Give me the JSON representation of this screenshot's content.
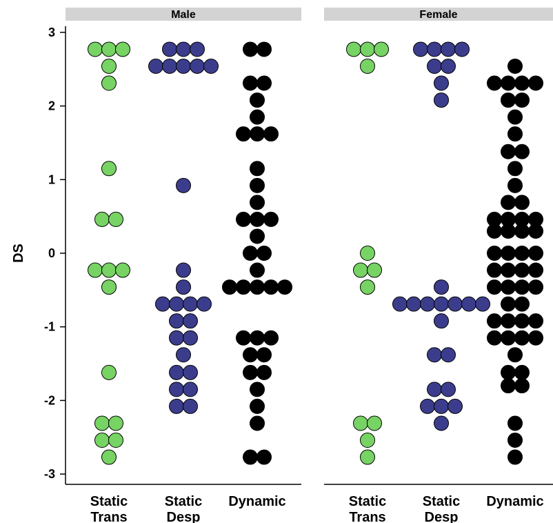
{
  "chart_data": {
    "type": "scatter",
    "subtype": "dot-strip",
    "ylabel": "DS",
    "ylim": [
      -3.2,
      3.2
    ],
    "yticks": [
      "3",
      "2",
      "1",
      "0",
      "-1",
      "-2",
      "-3"
    ],
    "ytick_values": [
      3,
      2,
      1,
      0,
      -1,
      -2,
      -3
    ],
    "categories": [
      [
        "Static",
        "Trans"
      ],
      [
        "Static",
        "Desp"
      ],
      [
        "Dynamic"
      ]
    ],
    "colors": {
      "Static Trans": "#77d364",
      "Static Desp": "#3b3d8c",
      "Dynamic": "#000000"
    },
    "panels": [
      {
        "name": "Male",
        "series": [
          {
            "category": "Static Trans",
            "points": [
              {
                "y": 2.77,
                "n": 3
              },
              {
                "y": 2.54,
                "n": 1
              },
              {
                "y": 2.31,
                "n": 1
              },
              {
                "y": 1.15,
                "n": 1
              },
              {
                "y": 0.46,
                "n": 2
              },
              {
                "y": -0.23,
                "n": 3
              },
              {
                "y": -0.46,
                "n": 1
              },
              {
                "y": -1.62,
                "n": 1
              },
              {
                "y": -2.31,
                "n": 2
              },
              {
                "y": -2.54,
                "n": 2
              },
              {
                "y": -2.77,
                "n": 1
              }
            ]
          },
          {
            "category": "Static Desp",
            "points": [
              {
                "y": 2.77,
                "n": 3
              },
              {
                "y": 2.54,
                "n": 5
              },
              {
                "y": 0.92,
                "n": 1
              },
              {
                "y": -0.23,
                "n": 1
              },
              {
                "y": -0.46,
                "n": 1
              },
              {
                "y": -0.69,
                "n": 4
              },
              {
                "y": -0.92,
                "n": 2
              },
              {
                "y": -1.15,
                "n": 2
              },
              {
                "y": -1.38,
                "n": 1
              },
              {
                "y": -1.62,
                "n": 2
              },
              {
                "y": -1.85,
                "n": 2
              },
              {
                "y": -2.08,
                "n": 2
              }
            ]
          },
          {
            "category": "Dynamic",
            "points": [
              {
                "y": 2.77,
                "n": 2
              },
              {
                "y": 2.31,
                "n": 2
              },
              {
                "y": 2.08,
                "n": 1
              },
              {
                "y": 1.85,
                "n": 1
              },
              {
                "y": 1.62,
                "n": 3
              },
              {
                "y": 1.15,
                "n": 1
              },
              {
                "y": 0.92,
                "n": 1
              },
              {
                "y": 0.69,
                "n": 1
              },
              {
                "y": 0.46,
                "n": 3
              },
              {
                "y": 0.23,
                "n": 1
              },
              {
                "y": 0.0,
                "n": 2
              },
              {
                "y": -0.23,
                "n": 1
              },
              {
                "y": -0.46,
                "n": 5
              },
              {
                "y": -1.15,
                "n": 3
              },
              {
                "y": -1.38,
                "n": 2
              },
              {
                "y": -1.62,
                "n": 2
              },
              {
                "y": -1.85,
                "n": 1
              },
              {
                "y": -2.08,
                "n": 1
              },
              {
                "y": -2.31,
                "n": 1
              },
              {
                "y": -2.77,
                "n": 2
              }
            ]
          }
        ]
      },
      {
        "name": "Female",
        "series": [
          {
            "category": "Static Trans",
            "points": [
              {
                "y": 2.77,
                "n": 3
              },
              {
                "y": 2.54,
                "n": 1
              },
              {
                "y": 0.0,
                "n": 1
              },
              {
                "y": -0.23,
                "n": 2
              },
              {
                "y": -0.46,
                "n": 1
              },
              {
                "y": -2.31,
                "n": 2
              },
              {
                "y": -2.54,
                "n": 1
              },
              {
                "y": -2.77,
                "n": 1
              }
            ]
          },
          {
            "category": "Static Desp",
            "points": [
              {
                "y": 2.77,
                "n": 4
              },
              {
                "y": 2.54,
                "n": 2
              },
              {
                "y": 2.31,
                "n": 1
              },
              {
                "y": 2.08,
                "n": 1
              },
              {
                "y": -0.46,
                "n": 1
              },
              {
                "y": -0.69,
                "n": 7
              },
              {
                "y": -0.92,
                "n": 1
              },
              {
                "y": -1.38,
                "n": 2
              },
              {
                "y": -1.85,
                "n": 2
              },
              {
                "y": -2.08,
                "n": 3
              },
              {
                "y": -2.31,
                "n": 1
              }
            ]
          },
          {
            "category": "Dynamic",
            "points": [
              {
                "y": 2.54,
                "n": 1
              },
              {
                "y": 2.31,
                "n": 4
              },
              {
                "y": 2.08,
                "n": 2
              },
              {
                "y": 1.85,
                "n": 1
              },
              {
                "y": 1.62,
                "n": 1
              },
              {
                "y": 1.38,
                "n": 2
              },
              {
                "y": 1.15,
                "n": 1
              },
              {
                "y": 0.92,
                "n": 1
              },
              {
                "y": 0.69,
                "n": 2
              },
              {
                "y": 0.46,
                "n": 4
              },
              {
                "y": 0.3,
                "n": 4
              },
              {
                "y": 0.0,
                "n": 4
              },
              {
                "y": -0.23,
                "n": 4
              },
              {
                "y": -0.46,
                "n": 4
              },
              {
                "y": -0.69,
                "n": 2
              },
              {
                "y": -0.92,
                "n": 4
              },
              {
                "y": -1.15,
                "n": 4
              },
              {
                "y": -1.38,
                "n": 1
              },
              {
                "y": -1.62,
                "n": 2
              },
              {
                "y": -1.8,
                "n": 2
              },
              {
                "y": -2.31,
                "n": 1
              },
              {
                "y": -2.54,
                "n": 1
              },
              {
                "y": -2.77,
                "n": 1
              }
            ]
          }
        ]
      }
    ]
  }
}
